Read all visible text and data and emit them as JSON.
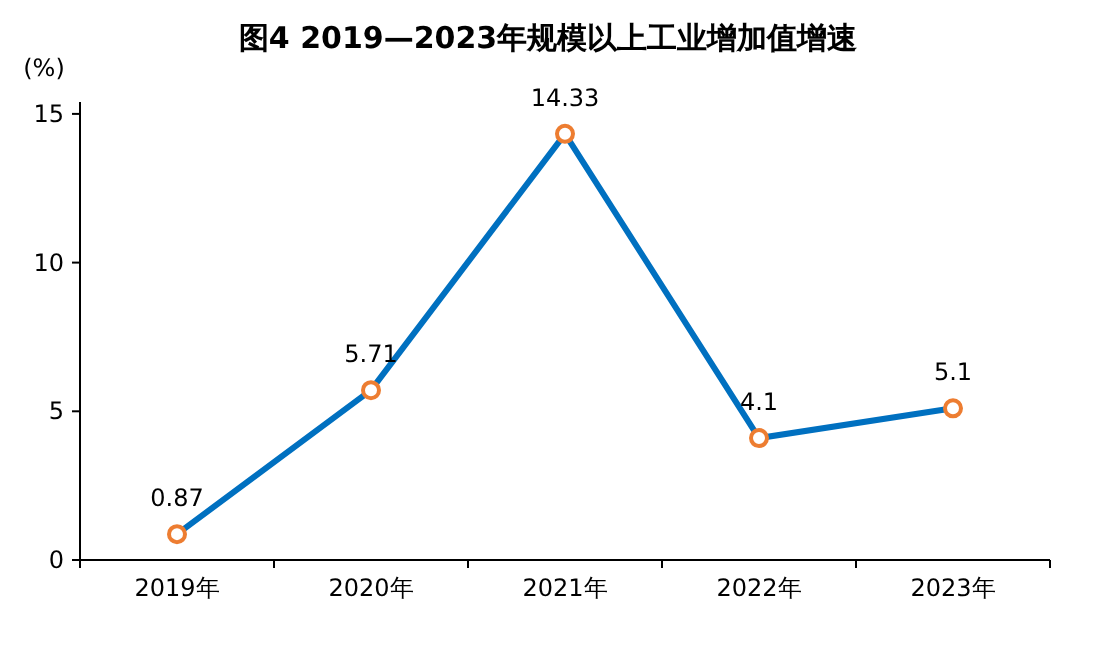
{
  "chart_data": {
    "type": "line",
    "title": "图4  2019—2023年规模以上工业增加值增速",
    "ylabel": "(%)",
    "categories": [
      "2019年",
      "2020年",
      "2021年",
      "2022年",
      "2023年"
    ],
    "series": [
      {
        "color": "#0070c0",
        "values": [
          0.87,
          5.71,
          14.33,
          4.1,
          5.1
        ]
      }
    ],
    "ylim": [
      0,
      15.4
    ],
    "yticks": [
      0,
      5,
      10,
      15
    ],
    "grid": false,
    "marker": "circle",
    "line_style": "solid",
    "data_labels": true
  }
}
